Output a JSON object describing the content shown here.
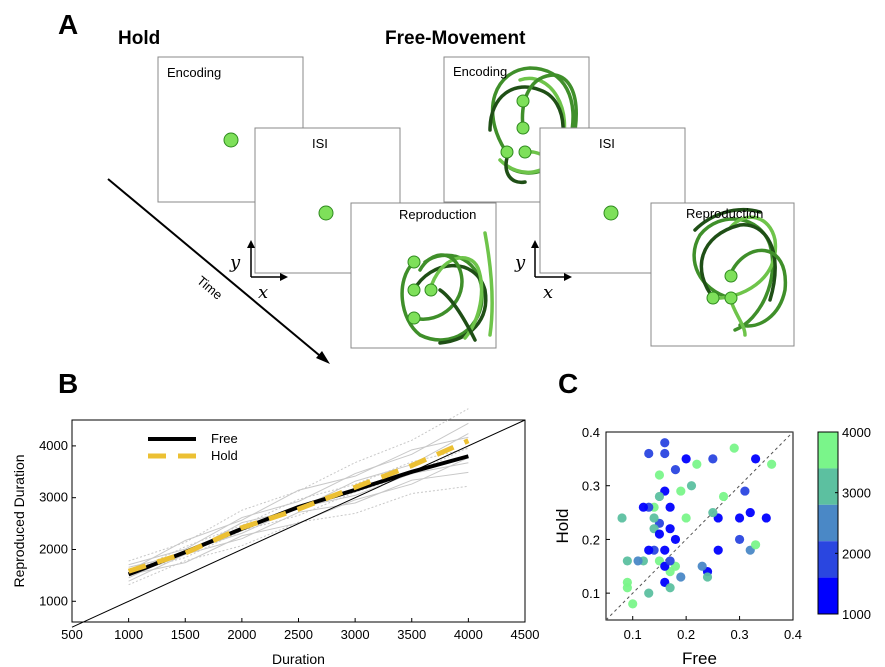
{
  "figure": {
    "panelA": {
      "letter": "A",
      "hold": {
        "title": "Hold",
        "frames": [
          "Encoding",
          "ISI",
          "Reproduction"
        ]
      },
      "free": {
        "title": "Free-Movement",
        "frames": [
          "Encoding",
          "ISI",
          "Reproduction"
        ]
      },
      "time_label": "Time",
      "x_label": "x",
      "y_label": "y"
    },
    "panelB": {
      "letter": "B"
    },
    "panelC": {
      "letter": "C"
    }
  },
  "colors": {
    "dot_fill": "#7ee05a",
    "dot_stroke": "#2f8a1f",
    "trace_dark": "#1f4f16",
    "trace_mid": "#3f8f2a",
    "trace_light": "#6ec44a",
    "free_line": "#000000",
    "hold_line": "#ecc033",
    "identity": "#000000",
    "gray_lines": "#c8c8c8"
  },
  "chart_data": [
    {
      "type": "line",
      "title": "",
      "xlabel": "Duration",
      "ylabel": "Reproduced Duration",
      "xlim": [
        500,
        4500
      ],
      "ylim": [
        600,
        4500
      ],
      "xticks": [
        500,
        1000,
        1500,
        2000,
        2500,
        3000,
        3500,
        4000,
        4500
      ],
      "yticks": [
        1000,
        2000,
        3000,
        4000
      ],
      "legend_position": "top-left",
      "series": [
        {
          "name": "Free",
          "x": [
            1000,
            1500,
            2000,
            2500,
            3000,
            3500,
            4000
          ],
          "values": [
            1520,
            1950,
            2400,
            2820,
            3150,
            3500,
            3800
          ]
        },
        {
          "name": "Hold",
          "x": [
            1000,
            1500,
            2000,
            2500,
            3000,
            3500,
            4000
          ],
          "values": [
            1580,
            1930,
            2420,
            2780,
            3200,
            3620,
            4100
          ]
        }
      ],
      "identity_line": true,
      "individual_lines_count": 0
    },
    {
      "type": "scatter",
      "title": "",
      "xlabel": "Free",
      "ylabel": "Hold",
      "xlim": [
        0.05,
        0.4
      ],
      "ylim": [
        0.05,
        0.4
      ],
      "xticks": [
        0.1,
        0.2,
        0.3,
        0.4
      ],
      "yticks": [
        0.1,
        0.2,
        0.3,
        0.4
      ],
      "diagonal": true,
      "colorbar": {
        "ticks": [
          1000,
          2000,
          3000,
          4000
        ],
        "colors": [
          "#0000ff",
          "#2a46e0",
          "#4a88c6",
          "#5cc0a0",
          "#7af58a"
        ]
      },
      "points": [
        {
          "x": 0.33,
          "y": 0.35,
          "c": 1000
        },
        {
          "x": 0.36,
          "y": 0.34,
          "c": 4000
        },
        {
          "x": 0.35,
          "y": 0.24,
          "c": 1000
        },
        {
          "x": 0.31,
          "y": 0.29,
          "c": 1500
        },
        {
          "x": 0.32,
          "y": 0.25,
          "c": 1000
        },
        {
          "x": 0.3,
          "y": 0.24,
          "c": 1000
        },
        {
          "x": 0.29,
          "y": 0.37,
          "c": 4000
        },
        {
          "x": 0.3,
          "y": 0.2,
          "c": 1500
        },
        {
          "x": 0.32,
          "y": 0.18,
          "c": 2500
        },
        {
          "x": 0.33,
          "y": 0.19,
          "c": 4000
        },
        {
          "x": 0.26,
          "y": 0.24,
          "c": 1000
        },
        {
          "x": 0.25,
          "y": 0.25,
          "c": 3000
        },
        {
          "x": 0.24,
          "y": 0.14,
          "c": 1000
        },
        {
          "x": 0.24,
          "y": 0.13,
          "c": 3000
        },
        {
          "x": 0.26,
          "y": 0.18,
          "c": 1000
        },
        {
          "x": 0.27,
          "y": 0.28,
          "c": 4000
        },
        {
          "x": 0.25,
          "y": 0.35,
          "c": 1500
        },
        {
          "x": 0.23,
          "y": 0.15,
          "c": 2500
        },
        {
          "x": 0.22,
          "y": 0.34,
          "c": 4000
        },
        {
          "x": 0.2,
          "y": 0.35,
          "c": 1000
        },
        {
          "x": 0.18,
          "y": 0.33,
          "c": 2000
        },
        {
          "x": 0.21,
          "y": 0.3,
          "c": 3000
        },
        {
          "x": 0.19,
          "y": 0.29,
          "c": 4000
        },
        {
          "x": 0.2,
          "y": 0.24,
          "c": 4000
        },
        {
          "x": 0.17,
          "y": 0.22,
          "c": 1000
        },
        {
          "x": 0.18,
          "y": 0.15,
          "c": 4000
        },
        {
          "x": 0.19,
          "y": 0.13,
          "c": 2500
        },
        {
          "x": 0.17,
          "y": 0.14,
          "c": 4000
        },
        {
          "x": 0.18,
          "y": 0.2,
          "c": 1000
        },
        {
          "x": 0.16,
          "y": 0.38,
          "c": 2000
        },
        {
          "x": 0.16,
          "y": 0.36,
          "c": 1500
        },
        {
          "x": 0.15,
          "y": 0.32,
          "c": 4000
        },
        {
          "x": 0.16,
          "y": 0.29,
          "c": 1000
        },
        {
          "x": 0.17,
          "y": 0.26,
          "c": 1000
        },
        {
          "x": 0.15,
          "y": 0.28,
          "c": 3000
        },
        {
          "x": 0.14,
          "y": 0.26,
          "c": 4000
        },
        {
          "x": 0.15,
          "y": 0.23,
          "c": 2000
        },
        {
          "x": 0.14,
          "y": 0.24,
          "c": 3000
        },
        {
          "x": 0.13,
          "y": 0.26,
          "c": 1500
        },
        {
          "x": 0.12,
          "y": 0.26,
          "c": 1000
        },
        {
          "x": 0.13,
          "y": 0.36,
          "c": 2000
        },
        {
          "x": 0.14,
          "y": 0.22,
          "c": 3500
        },
        {
          "x": 0.15,
          "y": 0.21,
          "c": 1000
        },
        {
          "x": 0.14,
          "y": 0.18,
          "c": 1500
        },
        {
          "x": 0.16,
          "y": 0.18,
          "c": 1000
        },
        {
          "x": 0.13,
          "y": 0.18,
          "c": 1000
        },
        {
          "x": 0.15,
          "y": 0.16,
          "c": 4000
        },
        {
          "x": 0.16,
          "y": 0.15,
          "c": 1000
        },
        {
          "x": 0.17,
          "y": 0.16,
          "c": 2000
        },
        {
          "x": 0.16,
          "y": 0.12,
          "c": 1000
        },
        {
          "x": 0.17,
          "y": 0.11,
          "c": 3000
        },
        {
          "x": 0.13,
          "y": 0.1,
          "c": 3000
        },
        {
          "x": 0.09,
          "y": 0.16,
          "c": 3000
        },
        {
          "x": 0.08,
          "y": 0.24,
          "c": 3000
        },
        {
          "x": 0.09,
          "y": 0.12,
          "c": 4000
        },
        {
          "x": 0.09,
          "y": 0.11,
          "c": 4000
        },
        {
          "x": 0.1,
          "y": 0.08,
          "c": 4000
        },
        {
          "x": 0.12,
          "y": 0.16,
          "c": 3000
        },
        {
          "x": 0.11,
          "y": 0.16,
          "c": 2500
        }
      ]
    }
  ]
}
